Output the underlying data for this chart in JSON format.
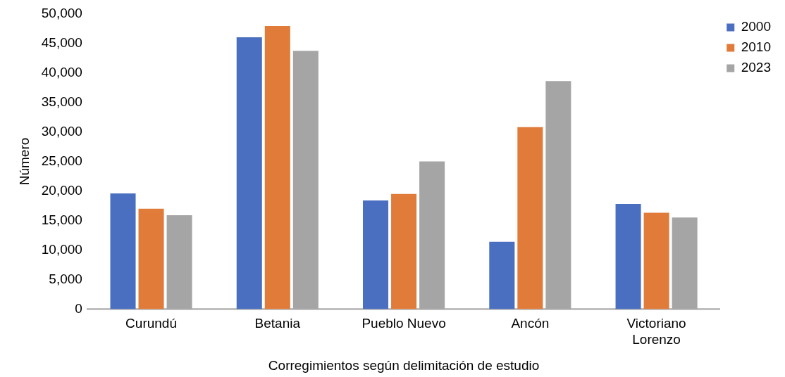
{
  "chart_data": {
    "type": "bar",
    "xlabel": "Corregimientos según delimitación de estudio",
    "ylabel": "Número",
    "categories": [
      "Curundú",
      "Betania",
      "Pueblo Nuevo",
      "Ancón",
      "Victoriano Lorenzo"
    ],
    "series": [
      {
        "name": "2000",
        "color": "#4a6fc0",
        "values": [
          19600,
          46000,
          18400,
          11400,
          17800
        ]
      },
      {
        "name": "2010",
        "color": "#e07b39",
        "values": [
          17000,
          47900,
          19500,
          30800,
          16300
        ]
      },
      {
        "name": "2023",
        "color": "#a5a5a5",
        "values": [
          15900,
          43700,
          25000,
          38600,
          15500
        ]
      }
    ],
    "ylim": [
      0,
      50000
    ],
    "yticks": [
      0,
      {
        "value": 5000,
        "label": "5,000"
      },
      {
        "value": 10000,
        "label": "10,000"
      },
      {
        "value": 15000,
        "label": "15,000"
      },
      {
        "value": 20000,
        "label": "20,000"
      },
      {
        "value": 25000,
        "label": "25,000"
      },
      {
        "value": 30000,
        "label": "30,000"
      },
      {
        "value": 35000,
        "label": "35,000"
      },
      {
        "value": 40000,
        "label": "40,000"
      },
      {
        "value": 45000,
        "label": "45,000"
      },
      {
        "value": 50000,
        "label": "50,000"
      }
    ],
    "grid": false,
    "legend": "top right"
  }
}
